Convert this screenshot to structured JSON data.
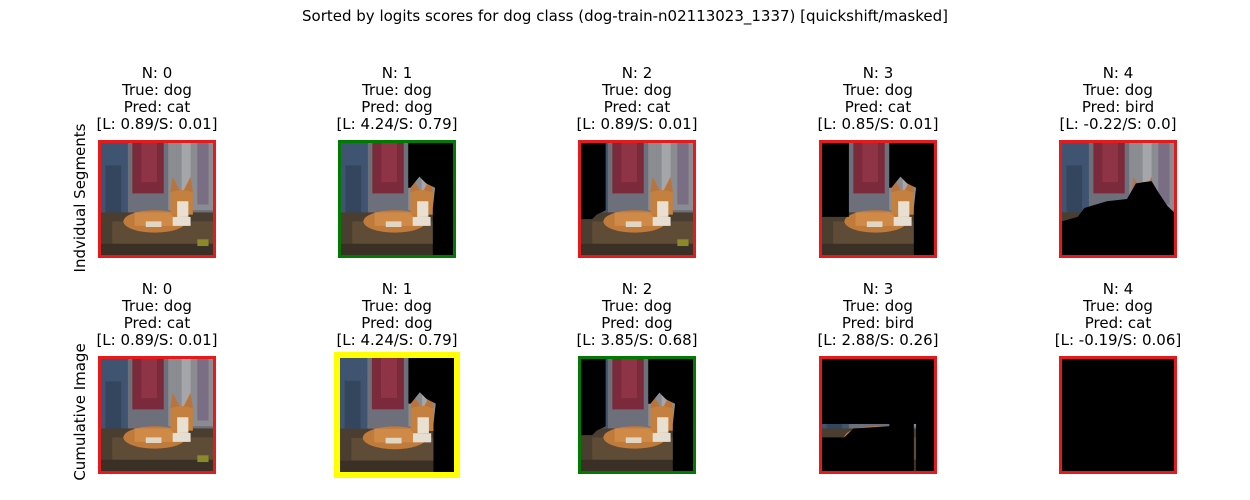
{
  "figure": {
    "title": "Sorted by logits scores for dog class (dog-train-n02113023_1337) [quickshift/masked]"
  },
  "colors": {
    "incorrect": "#e41a1c",
    "correct": "#007a00",
    "best": "#ffff00",
    "mask": "#000000"
  },
  "chart_data": [
    {
      "type": "image-grid",
      "row_label": "Indvidual Segments",
      "panels": [
        {
          "n": "N: 0",
          "true": "True: dog",
          "pred": "Pred: cat",
          "score": "[L: 0.89/S: 0.01]",
          "border": "incorrect",
          "mask": "none"
        },
        {
          "n": "N: 1",
          "true": "True: dog",
          "pred": "Pred: dog",
          "score": "[L: 4.24/S: 0.79]",
          "border": "correct",
          "mask": "top-right"
        },
        {
          "n": "N: 2",
          "true": "True: dog",
          "pred": "Pred: cat",
          "score": "[L: 0.89/S: 0.01]",
          "border": "incorrect",
          "mask": "left-strip"
        },
        {
          "n": "N: 3",
          "true": "True: dog",
          "pred": "Pred: cat",
          "score": "[L: 0.85/S: 0.01]",
          "border": "incorrect",
          "mask": "left-and-right"
        },
        {
          "n": "N: 4",
          "true": "True: dog",
          "pred": "Pred: bird",
          "score": "[L: -0.22/S: 0.0]",
          "border": "incorrect",
          "mask": "bottom-blob"
        }
      ]
    },
    {
      "type": "image-grid",
      "row_label": "Cumulative Image",
      "panels": [
        {
          "n": "N: 0",
          "true": "True: dog",
          "pred": "Pred: cat",
          "score": "[L: 0.89/S: 0.01]",
          "border": "incorrect",
          "mask": "none"
        },
        {
          "n": "N: 1",
          "true": "True: dog",
          "pred": "Pred: dog",
          "score": "[L: 4.24/S: 0.79]",
          "border": "best",
          "mask": "top-right"
        },
        {
          "n": "N: 2",
          "true": "True: dog",
          "pred": "Pred: dog",
          "score": "[L: 3.85/S: 0.68]",
          "border": "correct",
          "mask": "top-right-and-left"
        },
        {
          "n": "N: 3",
          "true": "True: dog",
          "pred": "Pred: bird",
          "score": "[L: 2.88/S: 0.26]",
          "border": "incorrect",
          "mask": "mostly-masked"
        },
        {
          "n": "N: 4",
          "true": "True: dog",
          "pred": "Pred: cat",
          "score": "[L: -0.19/S: 0.06]",
          "border": "incorrect",
          "mask": "all"
        }
      ]
    }
  ]
}
